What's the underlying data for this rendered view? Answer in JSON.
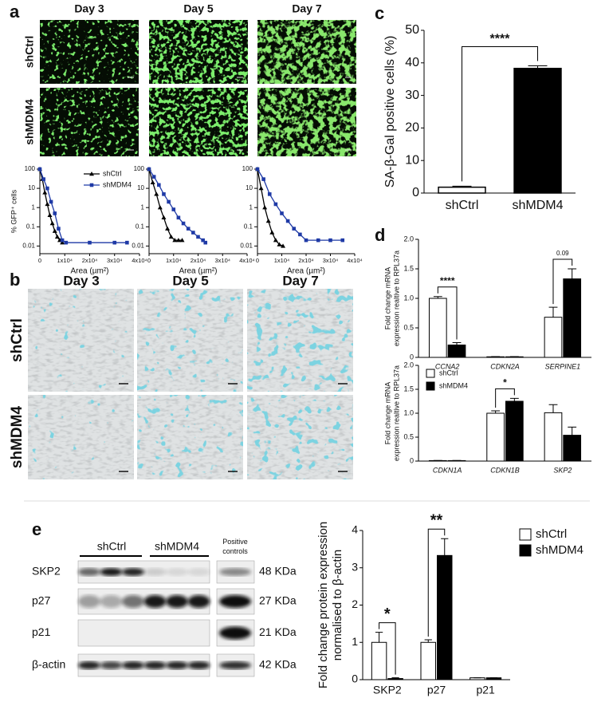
{
  "figure": {
    "panel_labels": [
      "a",
      "b",
      "c",
      "d",
      "e"
    ],
    "a": {
      "columns": [
        "Day 3",
        "Day 5",
        "Day 7"
      ],
      "rows": [
        "shCtrl",
        "shMDM4"
      ]
    },
    "b": {
      "columns": [
        "Day 3",
        "Day 5",
        "Day 7"
      ],
      "rows": [
        "shCtrl",
        "shMDM4"
      ]
    },
    "e": {
      "groups": [
        "shCtrl",
        "shMDM4"
      ],
      "positive": [
        "Positive",
        "controls"
      ],
      "proteins": [
        "SKP2",
        "p27",
        "p21",
        "β-actin"
      ],
      "sizes": [
        "48 KDa",
        "27 KDa",
        "21 KDa",
        "42 KDa"
      ]
    }
  },
  "chart_data": [
    {
      "type": "line",
      "log_y": true,
      "xlabel": "Area (µm²)",
      "ylabel": "% GFP⁺ cells",
      "xlim": [
        0,
        40000
      ],
      "ylim": [
        0.004,
        100
      ],
      "xticks": [
        0,
        {
          "value": 10000,
          "label": "1x10⁴"
        },
        {
          "value": 20000,
          "label": "2x10⁴"
        },
        {
          "value": 30000,
          "label": "3x10⁴"
        },
        {
          "value": 40000,
          "label": "4x10⁴"
        }
      ],
      "yticks": [
        100,
        10,
        1,
        0.1,
        0.01
      ],
      "legend": "upper right",
      "series": [
        {
          "name": "shCtrl",
          "color": "#000000",
          "marker": "triangle",
          "x": [
            0,
            1000,
            2000,
            3000,
            4000,
            5000,
            6000,
            7000,
            8000,
            9000
          ],
          "values": [
            100,
            30,
            6,
            1.5,
            0.4,
            0.15,
            0.06,
            0.03,
            0.02,
            0.015
          ]
        },
        {
          "name": "shMDM4",
          "color": "#1f3aa6",
          "marker": "square",
          "x": [
            0,
            1500,
            3000,
            4500,
            6000,
            7500,
            9000,
            10500,
            20000,
            30000,
            35000
          ],
          "values": [
            100,
            30,
            10,
            2,
            0.5,
            0.08,
            0.02,
            0.015,
            0.015,
            0.015,
            0.015
          ]
        }
      ]
    },
    {
      "type": "line",
      "log_y": true,
      "xlabel": "Area (µm²)",
      "xlim": [
        0,
        40000
      ],
      "ylim": [
        0.004,
        100
      ],
      "xticks": [
        0,
        {
          "value": 10000,
          "label": "1x10⁴"
        },
        {
          "value": 20000,
          "label": "2x10⁴"
        },
        {
          "value": 30000,
          "label": "3x10⁴"
        },
        {
          "value": 40000,
          "label": "4x10⁴"
        }
      ],
      "yticks": [
        100,
        10,
        1,
        0.1,
        0.01
      ],
      "series": [
        {
          "color": "#000000",
          "marker": "triangle",
          "x": [
            0,
            1500,
            3000,
            4500,
            6000,
            7500,
            9000,
            10500,
            12000,
            13500
          ],
          "values": [
            100,
            20,
            5,
            1,
            0.3,
            0.08,
            0.03,
            0.02,
            0.02,
            0.02
          ]
        },
        {
          "color": "#1f3aa6",
          "marker": "square",
          "x": [
            0,
            2000,
            4000,
            6000,
            8000,
            10000,
            12000,
            14000,
            16000,
            18000,
            20000,
            22000,
            23000
          ],
          "values": [
            100,
            40,
            15,
            5,
            2,
            0.8,
            0.3,
            0.15,
            0.08,
            0.05,
            0.03,
            0.02,
            0.015
          ]
        }
      ]
    },
    {
      "type": "line",
      "log_y": true,
      "xlabel": "Area (µm²)",
      "xlim": [
        0,
        40000
      ],
      "ylim": [
        0.004,
        100
      ],
      "xticks": [
        0,
        {
          "value": 10000,
          "label": "1x10⁴"
        },
        {
          "value": 20000,
          "label": "2x10⁴"
        },
        {
          "value": 30000,
          "label": "3x10⁴"
        },
        {
          "value": 40000,
          "label": "4x10⁴"
        }
      ],
      "yticks": [
        100,
        10,
        1,
        0.1,
        0.01
      ],
      "series": [
        {
          "color": "#000000",
          "marker": "triangle",
          "x": [
            0,
            1500,
            3000,
            4500,
            6000,
            7500,
            9000,
            10500
          ],
          "values": [
            100,
            10,
            1,
            0.2,
            0.05,
            0.02,
            0.012,
            0.01
          ]
        },
        {
          "color": "#1f3aa6",
          "marker": "square",
          "x": [
            0,
            2500,
            5000,
            7500,
            10000,
            12500,
            15000,
            17500,
            20000,
            25000,
            30000,
            35000
          ],
          "values": [
            100,
            30,
            5,
            1.5,
            0.5,
            0.2,
            0.08,
            0.04,
            0.02,
            0.02,
            0.02,
            0.02
          ]
        }
      ]
    },
    {
      "type": "bar",
      "ylabel": "SA-β-Gal positive cells (%)",
      "categories": [
        "shCtrl",
        "shMDM4"
      ],
      "values": [
        1.8,
        38.3
      ],
      "errors": [
        0.3,
        0.8
      ],
      "colors": [
        "#ffffff",
        "#000000"
      ],
      "ylim": [
        0,
        50
      ],
      "yticks": [
        0,
        10,
        20,
        30,
        40,
        50
      ],
      "annotations": [
        "****"
      ]
    },
    {
      "type": "grouped-bar",
      "ylabel": [
        "Fold change mRNA",
        "expression realtive to RPL37a"
      ],
      "categories": [
        "CCNA2",
        "CDKN2A",
        "SERPINE1"
      ],
      "ylim": [
        0,
        2
      ],
      "yticks": [
        0,
        0.5,
        {
          "value": 1,
          "label": "1.0"
        },
        1.5,
        {
          "value": 2,
          "label": "2.0"
        }
      ],
      "series": [
        {
          "color": "#ffffff",
          "values": [
            1.0,
            0.01,
            0.68
          ],
          "errors": [
            0.03,
            0.003,
            0.17
          ]
        },
        {
          "color": "#000000",
          "values": [
            0.21,
            0.01,
            1.33
          ],
          "errors": [
            0.04,
            0.003,
            0.17
          ]
        }
      ],
      "annotations": [
        {
          "text": "****",
          "category": 0
        },
        {
          "text": "0.09",
          "category": 2
        }
      ]
    },
    {
      "type": "grouped-bar",
      "ylabel": [
        "Fold change mRNA",
        "expression realtive to RPL37a"
      ],
      "categories": [
        "CDKN1A",
        "CDKN1B",
        "SKP2"
      ],
      "ylim": [
        0,
        2
      ],
      "yticks": [
        0,
        0.5,
        {
          "value": 1,
          "label": "1.0"
        },
        1.5,
        {
          "value": 2,
          "label": "2.0"
        }
      ],
      "legend": "upper left",
      "series": [
        {
          "name": "shCtrl",
          "color": "#ffffff",
          "values": [
            0.01,
            1.0,
            1.01
          ],
          "errors": [
            0.003,
            0.05,
            0.17
          ]
        },
        {
          "name": "shMDM4",
          "color": "#000000",
          "values": [
            0.01,
            1.25,
            0.54
          ],
          "errors": [
            0.003,
            0.06,
            0.17
          ]
        }
      ],
      "annotations": [
        {
          "text": "*",
          "category": 1
        }
      ]
    },
    {
      "type": "grouped-bar",
      "ylabel": [
        "Fold change protein expression",
        "normalised to β-actin"
      ],
      "categories": [
        "SKP2",
        "p27",
        "p21"
      ],
      "ylim": [
        0,
        4
      ],
      "yticks": [
        0,
        1,
        2,
        3,
        4
      ],
      "legend": "outside right",
      "series": [
        {
          "name": "shCtrl",
          "color": "#ffffff",
          "values": [
            1.0,
            1.0,
            0.05
          ],
          "errors": [
            0.27,
            0.07,
            0.0
          ]
        },
        {
          "name": "shMDM4",
          "color": "#000000",
          "values": [
            0.03,
            3.33,
            0.05
          ],
          "errors": [
            0.02,
            0.45,
            0.0
          ]
        }
      ],
      "annotations": [
        {
          "text": "*",
          "category": 0
        },
        {
          "text": "**",
          "category": 1
        }
      ]
    }
  ]
}
